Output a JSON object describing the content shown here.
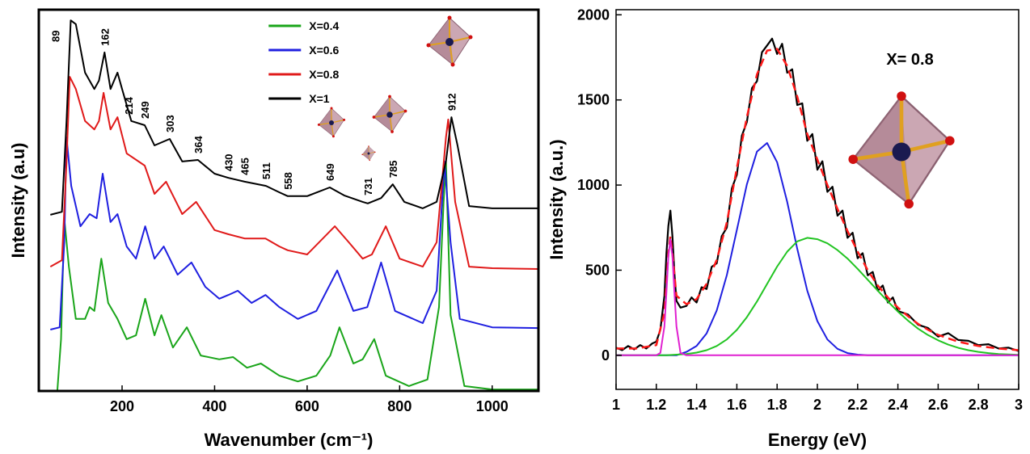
{
  "chart_data": [
    {
      "type": "line",
      "xlabel": "Wavenumber (cm⁻¹)",
      "ylabel": "Intensity (a.u)",
      "xlim": [
        20,
        1100
      ],
      "ylim": [
        0,
        100
      ],
      "xticks": [
        200,
        400,
        600,
        800,
        1000
      ],
      "legend": "upper center",
      "peak_labels": [
        89,
        162,
        214,
        249,
        303,
        364,
        430,
        465,
        511,
        558,
        649,
        731,
        785,
        912
      ],
      "series": [
        {
          "name": "X=0.4",
          "color": "#1aa51a",
          "x": [
            60,
            68,
            75,
            85,
            100,
            120,
            130,
            140,
            155,
            170,
            190,
            210,
            230,
            250,
            270,
            285,
            310,
            340,
            370,
            410,
            440,
            470,
            500,
            540,
            580,
            620,
            650,
            670,
            700,
            720,
            745,
            770,
            820,
            860,
            885,
            895,
            900,
            910,
            940,
            1000,
            1100
          ],
          "values": [
            0,
            13.6,
            45.3,
            32.6,
            18.9,
            18.9,
            22.0,
            21.0,
            34.7,
            23.1,
            18.9,
            13.6,
            14.6,
            24.2,
            14.6,
            19.9,
            11.4,
            16.7,
            9.3,
            8.3,
            8.9,
            6.1,
            7.2,
            4.0,
            2.5,
            4.0,
            9.3,
            16.7,
            7.2,
            8.3,
            13.6,
            4.0,
            1.3,
            3.0,
            22.0,
            49.6,
            60.2,
            19.9,
            1.3,
            0.4,
            0.4
          ]
        },
        {
          "name": "X=0.6",
          "color": "#1f1fe0",
          "x": [
            45,
            65,
            75,
            80,
            90,
            110,
            130,
            145,
            158,
            175,
            190,
            210,
            230,
            250,
            270,
            290,
            320,
            350,
            380,
            410,
            430,
            450,
            480,
            510,
            540,
            580,
            620,
            665,
            700,
            730,
            760,
            790,
            850,
            880,
            897,
            910,
            930,
            1000,
            1100
          ],
          "values": [
            16.1,
            16.7,
            39.0,
            66.5,
            53.8,
            43.2,
            46.4,
            45.3,
            57.0,
            44.3,
            46.4,
            37.9,
            34.7,
            43.2,
            34.7,
            37.9,
            30.5,
            33.7,
            27.3,
            24.2,
            25.2,
            26.3,
            23.1,
            25.2,
            22.0,
            18.9,
            21.0,
            31.6,
            21.0,
            22.0,
            33.7,
            21.0,
            17.8,
            26.3,
            60.2,
            39.0,
            18.9,
            16.7,
            16.5
          ]
        },
        {
          "name": "X=0.8",
          "color": "#e01a1a",
          "x": [
            45,
            70,
            80,
            87,
            100,
            120,
            140,
            150,
            160,
            175,
            190,
            210,
            249,
            270,
            295,
            330,
            360,
            400,
            430,
            465,
            510,
            540,
            558,
            600,
            660,
            690,
            720,
            740,
            770,
            800,
            850,
            880,
            900,
            905,
            920,
            950,
            1000,
            1100
          ],
          "values": [
            32.6,
            34.3,
            60.2,
            82.4,
            79.2,
            70.8,
            68.6,
            70.8,
            78.2,
            68.6,
            71.8,
            62.3,
            59.1,
            51.7,
            54.9,
            46.4,
            49.6,
            42.2,
            41.1,
            40.0,
            40.0,
            37.9,
            36.9,
            35.8,
            43.2,
            39.0,
            34.7,
            35.8,
            43.2,
            34.7,
            32.6,
            39.0,
            66.5,
            71.2,
            49.6,
            32.6,
            32.2,
            32.0
          ]
        },
        {
          "name": "X=1",
          "color": "#000000",
          "x": [
            45,
            70,
            80,
            89,
            100,
            120,
            140,
            150,
            162,
            175,
            190,
            200,
            220,
            249,
            270,
            303,
            330,
            364,
            400,
            430,
            465,
            511,
            540,
            558,
            600,
            649,
            680,
            720,
            731,
            760,
            785,
            810,
            850,
            880,
            900,
            912,
            925,
            950,
            1000,
            1100
          ],
          "values": [
            46.2,
            47.0,
            70.8,
            97.2,
            96.2,
            83.5,
            79.2,
            81.4,
            88.8,
            79.2,
            83.5,
            79.2,
            70.8,
            69.7,
            64.4,
            66.1,
            60.2,
            60.6,
            57.0,
            55.9,
            54.9,
            53.8,
            52.1,
            51.1,
            51.1,
            53.4,
            51.3,
            49.6,
            49.2,
            50.6,
            54.2,
            49.6,
            47.9,
            49.6,
            60.2,
            71.8,
            64.4,
            48.5,
            47.9,
            47.9
          ]
        }
      ]
    },
    {
      "type": "line",
      "xlabel": "Energy (eV)",
      "ylabel": "Intensity (a.u.)",
      "annotation": "X= 0.8",
      "xlim": [
        1,
        3
      ],
      "ylim": [
        -200,
        2030
      ],
      "xticks": [
        1,
        1.2,
        1.4,
        1.6,
        1.8,
        2,
        2.2,
        2.4,
        2.6,
        2.8,
        3
      ],
      "yticks": [
        0,
        500,
        1000,
        1500,
        2000
      ],
      "series": [
        {
          "color": "#000000",
          "x": [
            1,
            1.03,
            1.06,
            1.09,
            1.12,
            1.15,
            1.18,
            1.2,
            1.22,
            1.24,
            1.25,
            1.26,
            1.27,
            1.28,
            1.29,
            1.3,
            1.32,
            1.35,
            1.375,
            1.4,
            1.425,
            1.45,
            1.475,
            1.5,
            1.525,
            1.55,
            1.575,
            1.6,
            1.625,
            1.65,
            1.675,
            1.7,
            1.725,
            1.75,
            1.775,
            1.8,
            1.825,
            1.85,
            1.875,
            1.9,
            1.925,
            1.95,
            1.975,
            2,
            2.025,
            2.05,
            2.075,
            2.1,
            2.125,
            2.15,
            2.175,
            2.2,
            2.225,
            2.25,
            2.275,
            2.3,
            2.325,
            2.35,
            2.375,
            2.4,
            2.45,
            2.5,
            2.55,
            2.6,
            2.65,
            2.7,
            2.75,
            2.8,
            2.85,
            2.9,
            2.95,
            3
          ],
          "values": [
            45,
            30,
            55,
            35,
            60,
            40,
            70,
            80,
            150,
            350,
            600,
            760,
            850,
            700,
            480,
            320,
            280,
            290,
            340,
            310,
            400,
            390,
            520,
            540,
            700,
            750,
            980,
            1060,
            1290,
            1370,
            1570,
            1610,
            1780,
            1820,
            1860,
            1770,
            1830,
            1660,
            1680,
            1470,
            1480,
            1260,
            1300,
            1090,
            1140,
            960,
            990,
            820,
            850,
            690,
            720,
            570,
            600,
            470,
            490,
            380,
            410,
            310,
            340,
            260,
            240,
            180,
            160,
            110,
            130,
            90,
            85,
            60,
            65,
            40,
            45,
            25
          ]
        },
        {
          "color": "#ff1a1a",
          "linestyle": "dashed",
          "x": [
            1,
            1.1,
            1.2,
            1.24,
            1.26,
            1.27,
            1.28,
            1.3,
            1.35,
            1.4,
            1.45,
            1.5,
            1.55,
            1.6,
            1.65,
            1.7,
            1.75,
            1.8,
            1.85,
            1.9,
            1.95,
            2,
            2.05,
            2.1,
            2.15,
            2.2,
            2.25,
            2.3,
            2.35,
            2.4,
            2.45,
            2.5,
            2.55,
            2.6,
            2.65,
            2.7,
            2.8,
            2.9,
            3
          ],
          "values": [
            40,
            40,
            60,
            250,
            600,
            700,
            600,
            350,
            300,
            330,
            420,
            560,
            780,
            1100,
            1400,
            1650,
            1790,
            1800,
            1700,
            1520,
            1300,
            1150,
            1000,
            860,
            730,
            610,
            500,
            410,
            340,
            280,
            230,
            185,
            150,
            120,
            100,
            80,
            55,
            40,
            30
          ]
        },
        {
          "color": "#1f1fe0",
          "x": [
            1,
            1.3,
            1.35,
            1.4,
            1.45,
            1.5,
            1.55,
            1.6,
            1.65,
            1.7,
            1.75,
            1.8,
            1.85,
            1.9,
            1.95,
            2,
            2.05,
            2.1,
            2.15,
            2.2,
            2.25,
            3
          ],
          "values": [
            0,
            0,
            20,
            55,
            129,
            263,
            471,
            736,
            1004,
            1197,
            1247,
            1134,
            901,
            626,
            380,
            201,
            93,
            38,
            13,
            4,
            0,
            0
          ]
        },
        {
          "color": "#22c422",
          "x": [
            1,
            1.25,
            1.3,
            1.35,
            1.4,
            1.45,
            1.5,
            1.55,
            1.6,
            1.65,
            1.7,
            1.75,
            1.8,
            1.85,
            1.9,
            1.95,
            2,
            2.05,
            2.1,
            2.15,
            2.2,
            2.25,
            2.3,
            2.35,
            2.4,
            2.45,
            2.5,
            2.55,
            2.6,
            2.65,
            2.7,
            2.75,
            2.8,
            2.85,
            2.9,
            2.95,
            3
          ],
          "values": [
            0,
            0,
            4,
            8,
            16,
            30,
            55,
            93,
            149,
            224,
            316,
            419,
            521,
            609,
            669,
            690,
            682,
            658,
            618,
            568,
            508,
            444,
            380,
            316,
            257,
            204,
            157,
            119,
            88,
            63,
            44,
            30,
            20,
            13,
            8,
            5,
            3
          ]
        },
        {
          "color": "#e020d0",
          "x": [
            1,
            1.2,
            1.22,
            1.24,
            1.25,
            1.26,
            1.27,
            1.28,
            1.29,
            1.3,
            1.32,
            1.35,
            3
          ],
          "values": [
            0,
            0,
            14,
            170,
            368,
            582,
            680,
            582,
            368,
            170,
            14,
            0,
            0
          ]
        }
      ]
    }
  ]
}
